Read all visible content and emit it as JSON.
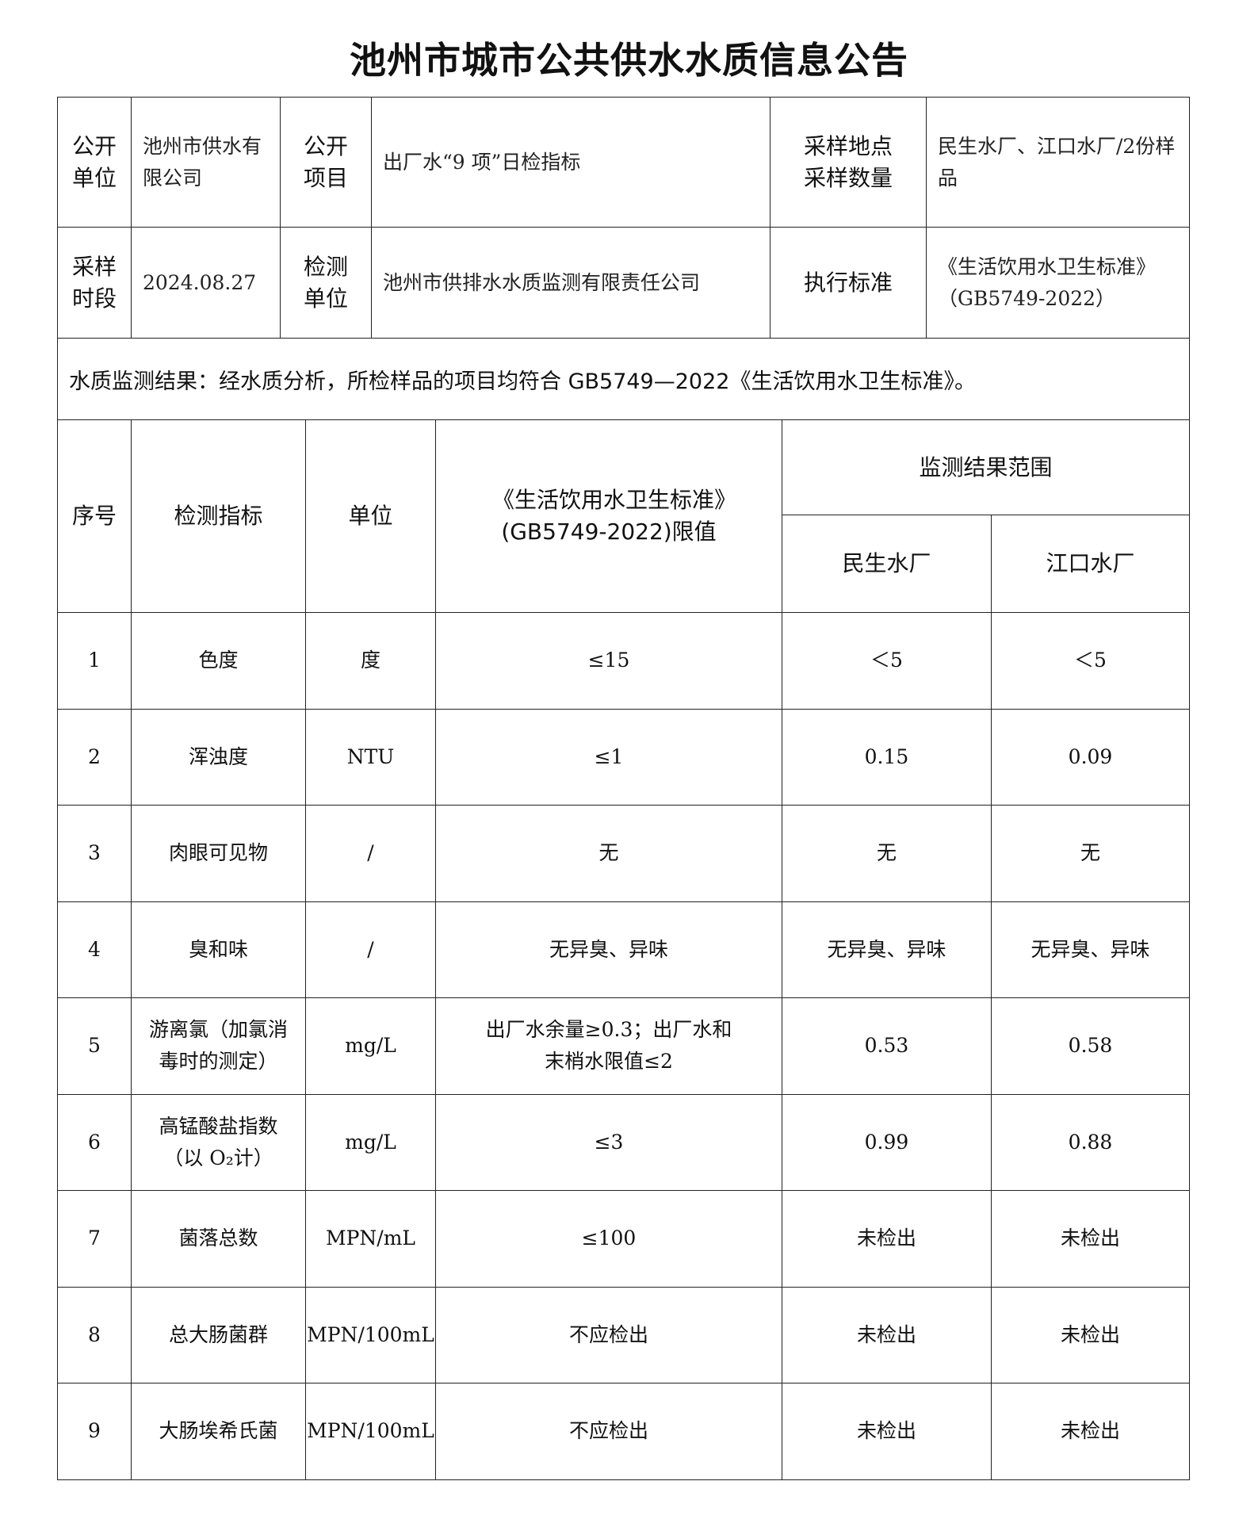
{
  "title": "池州市城市公共供水水质信息公告",
  "info": {
    "publisher_label": "公开单位",
    "publisher": "池州市供水有限公司",
    "item_label": "公开项目",
    "item": "出厂水“9 项”日检指标",
    "sampling_label": "采样地点采样数量",
    "sampling": "民生水厂、江口水厂/2份样品",
    "period_label": "采样时段",
    "period": "2024.08.27",
    "lab_label": "检测单位",
    "lab": "池州市供排水水质监测有限责任公司",
    "standard_label": "执行标准",
    "standard": "《生活饮用水卫生标准》（GB5749-2022）",
    "summary": "水质监测结果：经水质分析，所检样品的项目均符合 GB5749—2022《生活饮用水卫生标准》。"
  },
  "table": {
    "headers": {
      "no": "序号",
      "indicator": "检测指标",
      "unit": "单位",
      "limit": "《生活饮用水卫生标准》(GB5749-2022)限值",
      "range": "监测结果范围",
      "plant1": "民生水厂",
      "plant2": "江口水厂"
    },
    "rows": [
      {
        "no": "1",
        "indicator": "色度",
        "unit": "度",
        "limit": "≤15",
        "plant1": "＜5",
        "plant2": "＜5"
      },
      {
        "no": "2",
        "indicator": "浑浊度",
        "unit": "NTU",
        "limit": "≤1",
        "plant1": "0.15",
        "plant2": "0.09"
      },
      {
        "no": "3",
        "indicator": "肉眼可见物",
        "unit": "/",
        "limit": "无",
        "plant1": "无",
        "plant2": "无"
      },
      {
        "no": "4",
        "indicator": "臭和味",
        "unit": "/",
        "limit": "无异臭、异味",
        "plant1": "无异臭、异味",
        "plant2": "无异臭、异味"
      },
      {
        "no": "5",
        "indicator": "游离氯（加氯消毒时的测定）",
        "unit": "mg/L",
        "limit": "出厂水余量≥0.3；出厂水和末梢水限值≤2",
        "plant1": "0.53",
        "plant2": "0.58"
      },
      {
        "no": "6",
        "indicator": "高锰酸盐指数（以 O₂计）",
        "unit": "mg/L",
        "limit": "≤3",
        "plant1": "0.99",
        "plant2": "0.88"
      },
      {
        "no": "7",
        "indicator": "菌落总数",
        "unit": "MPN/mL",
        "limit": "≤100",
        "plant1": "未检出",
        "plant2": "未检出"
      },
      {
        "no": "8",
        "indicator": "总大肠菌群",
        "unit": "MPN/100mL",
        "limit": "不应检出",
        "plant1": "未检出",
        "plant2": "未检出"
      },
      {
        "no": "9",
        "indicator": "大肠埃希氏菌",
        "unit": "MPN/100mL",
        "limit": "不应检出",
        "plant1": "未检出",
        "plant2": "未检出"
      }
    ]
  }
}
